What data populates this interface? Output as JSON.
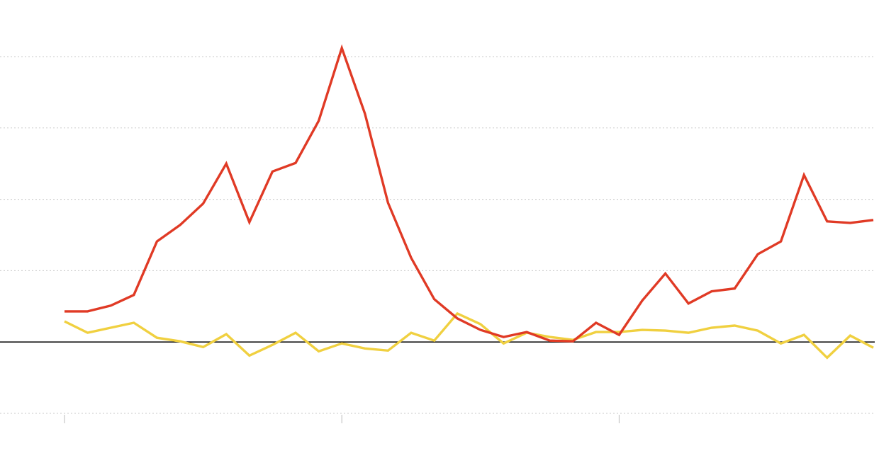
{
  "colors": {
    "background": "#ffffff",
    "grid": "#c8c8c8",
    "zero_line": "#111111",
    "tick": "#bbbbbb"
  },
  "chart_data": {
    "type": "line",
    "title": "",
    "xlabel": "",
    "ylabel": "",
    "grid": true,
    "ylim": [
      -1,
      4
    ],
    "y_gridlines": [
      -1,
      0,
      1,
      2,
      3,
      4
    ],
    "x_tick_indices": [
      0,
      12,
      24
    ],
    "x": [
      0,
      1,
      2,
      3,
      4,
      5,
      6,
      7,
      8,
      9,
      10,
      11,
      12,
      13,
      14,
      15,
      16,
      17,
      18,
      19,
      20,
      21,
      22,
      23,
      24,
      25,
      26,
      27,
      28,
      29,
      30,
      31,
      32,
      33,
      34,
      35
    ],
    "series": [
      {
        "color": "#e03a25",
        "values": [
          0.43,
          0.43,
          0.51,
          0.66,
          1.41,
          1.64,
          1.94,
          2.5,
          1.68,
          2.39,
          2.51,
          3.1,
          4.12,
          3.2,
          1.95,
          1.18,
          0.6,
          0.33,
          0.17,
          0.07,
          0.14,
          0.02,
          0.01,
          0.27,
          0.1,
          0.58,
          0.96,
          0.54,
          0.71,
          0.75,
          1.23,
          1.41,
          2.34,
          1.69,
          1.67,
          1.71
        ]
      },
      {
        "color": "#f0d040",
        "values": [
          0.29,
          0.13,
          0.2,
          0.27,
          0.06,
          0.01,
          -0.07,
          0.11,
          -0.19,
          -0.04,
          0.13,
          -0.13,
          -0.02,
          -0.09,
          -0.12,
          0.13,
          0.02,
          0.4,
          0.25,
          -0.02,
          0.13,
          0.07,
          0.03,
          0.14,
          0.14,
          0.17,
          0.16,
          0.13,
          0.2,
          0.23,
          0.16,
          -0.02,
          0.1,
          -0.22,
          0.09,
          -0.08
        ]
      }
    ]
  }
}
